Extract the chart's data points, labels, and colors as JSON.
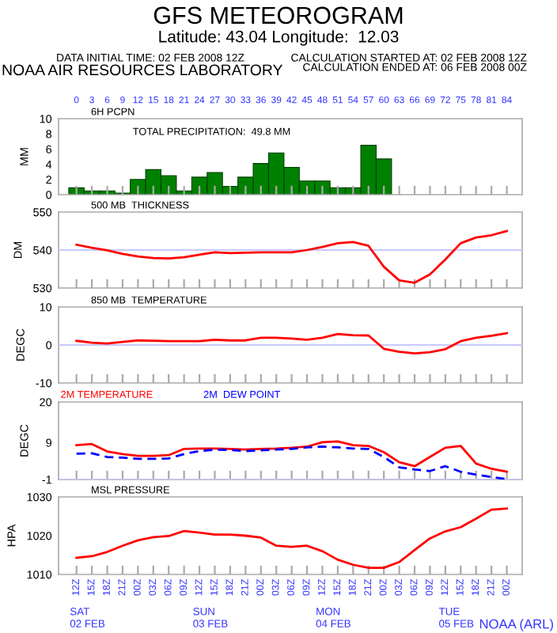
{
  "chart_data": [
    {
      "type": "bar",
      "title": "GFS METEOROGRAM",
      "subtitle": "Latitude: 43.04 Longitude:  12.03",
      "ylabel": "MM",
      "annotations": [
        "DATA INITIAL TIME: 02 FEB 2008 12Z",
        "CALCULATION STARTED AT: 02 FEB 2008 12Z",
        "CALCULATION ENDED AT: 06 FEB 2008 00Z",
        "NOAA AIR RESOURCES LABORATORY",
        "6H PCPN",
        "TOTAL PRECIPITATION:  49.8 MM"
      ],
      "x": [
        "2008-02-02T12:00",
        "2008-02-02T15:00",
        "2008-02-02T18:00",
        "2008-02-02T21:00",
        "2008-02-03T00:00",
        "2008-02-03T03:00",
        "2008-02-03T06:00",
        "2008-02-03T09:00",
        "2008-02-03T12:00",
        "2008-02-03T15:00",
        "2008-02-03T18:00",
        "2008-02-03T21:00",
        "2008-02-04T00:00",
        "2008-02-04T03:00",
        "2008-02-04T06:00",
        "2008-02-04T09:00",
        "2008-02-04T12:00",
        "2008-02-04T15:00",
        "2008-02-04T18:00",
        "2008-02-04T21:00",
        "2008-02-05T00:00"
      ],
      "series": [
        {
          "color": "#008000",
          "values": [
            0.9,
            0.5,
            0.5,
            0.2,
            2.0,
            3.3,
            2.5,
            0.5,
            2.3,
            2.9,
            1.1,
            2.3,
            4.1,
            5.5,
            3.6,
            1.8,
            1.8,
            0.9,
            0.9,
            6.5,
            4.7
          ]
        }
      ],
      "xlim": [
        "2008-02-02T08:30",
        "2008-02-06T03:00"
      ],
      "ylim": [
        0,
        10
      ],
      "yticks": [
        0,
        2,
        4,
        6,
        8,
        10
      ],
      "x2lim": [
        -3.5,
        87
      ],
      "x2ticks": [
        0,
        3,
        6,
        9,
        12,
        15,
        18,
        21,
        24,
        27,
        30,
        33,
        36,
        39,
        42,
        45,
        48,
        51,
        54,
        57,
        60,
        63,
        66,
        69,
        72,
        75,
        78,
        81,
        84
      ],
      "tick_labels": "y",
      "grid": false
    },
    {
      "type": "line",
      "title": "500 MB  THICKNESS",
      "ylabel": "DM",
      "x": [
        "2008-02-02T12:00",
        "2008-02-02T15:00",
        "2008-02-02T18:00",
        "2008-02-02T21:00",
        "2008-02-03T00:00",
        "2008-02-03T03:00",
        "2008-02-03T06:00",
        "2008-02-03T09:00",
        "2008-02-03T12:00",
        "2008-02-03T15:00",
        "2008-02-03T18:00",
        "2008-02-03T21:00",
        "2008-02-04T00:00",
        "2008-02-04T03:00",
        "2008-02-04T06:00",
        "2008-02-04T09:00",
        "2008-02-04T12:00",
        "2008-02-04T15:00",
        "2008-02-04T18:00",
        "2008-02-04T21:00",
        "2008-02-05T00:00",
        "2008-02-05T03:00",
        "2008-02-05T06:00",
        "2008-02-05T09:00",
        "2008-02-05T12:00",
        "2008-02-05T15:00",
        "2008-02-05T18:00",
        "2008-02-05T21:00",
        "2008-02-06T00:00"
      ],
      "series": [
        {
          "color": "#ff0000",
          "values": [
            541.4,
            540.6,
            539.9,
            539.0,
            538.3,
            537.9,
            537.8,
            538.1,
            538.8,
            539.4,
            539.2,
            539.3,
            539.4,
            539.4,
            539.4,
            540.0,
            540.8,
            541.8,
            542.1,
            541.1,
            535.6,
            532.0,
            531.4,
            533.6,
            537.5,
            541.8,
            543.3,
            543.9,
            545.0
          ]
        }
      ],
      "xlim": [
        "2008-02-02T08:30",
        "2008-02-06T03:00"
      ],
      "ylim": [
        530,
        550
      ],
      "yticks": [
        530,
        540,
        550
      ],
      "ref_lines": [
        {
          "axis": "y",
          "value": 540,
          "color": "#c8c8ff"
        }
      ],
      "tick_labels": "y",
      "grid": false
    },
    {
      "type": "line",
      "title": "850 MB  TEMPERATURE",
      "ylabel": "DEGC",
      "x": [
        "2008-02-02T12:00",
        "2008-02-02T15:00",
        "2008-02-02T18:00",
        "2008-02-02T21:00",
        "2008-02-03T00:00",
        "2008-02-03T03:00",
        "2008-02-03T06:00",
        "2008-02-03T09:00",
        "2008-02-03T12:00",
        "2008-02-03T15:00",
        "2008-02-03T18:00",
        "2008-02-03T21:00",
        "2008-02-04T00:00",
        "2008-02-04T03:00",
        "2008-02-04T06:00",
        "2008-02-04T09:00",
        "2008-02-04T12:00",
        "2008-02-04T15:00",
        "2008-02-04T18:00",
        "2008-02-04T21:00",
        "2008-02-05T00:00",
        "2008-02-05T03:00",
        "2008-02-05T06:00",
        "2008-02-05T09:00",
        "2008-02-05T12:00",
        "2008-02-05T15:00",
        "2008-02-05T18:00",
        "2008-02-05T21:00",
        "2008-02-06T00:00"
      ],
      "series": [
        {
          "color": "#ff0000",
          "values": [
            1.1,
            0.6,
            0.4,
            0.8,
            1.2,
            1.1,
            1.0,
            1.0,
            1.0,
            1.4,
            1.2,
            1.2,
            1.9,
            1.9,
            1.7,
            1.4,
            1.9,
            2.9,
            2.6,
            2.5,
            -1.0,
            -1.8,
            -2.2,
            -1.9,
            -1.1,
            1.0,
            1.9,
            2.4,
            3.1
          ]
        }
      ],
      "xlim": [
        "2008-02-02T08:30",
        "2008-02-06T03:00"
      ],
      "ylim": [
        -10,
        10
      ],
      "yticks": [
        -10,
        0,
        10
      ],
      "ref_lines": [
        {
          "axis": "y",
          "value": 0,
          "color": "#c8c8ff"
        }
      ],
      "tick_labels": "y",
      "grid": false
    },
    {
      "type": "line",
      "ylabel": "DEGC",
      "legend": "top left",
      "x": [
        "2008-02-02T12:00",
        "2008-02-02T15:00",
        "2008-02-02T18:00",
        "2008-02-02T21:00",
        "2008-02-03T00:00",
        "2008-02-03T03:00",
        "2008-02-03T06:00",
        "2008-02-03T09:00",
        "2008-02-03T12:00",
        "2008-02-03T15:00",
        "2008-02-03T18:00",
        "2008-02-03T21:00",
        "2008-02-04T00:00",
        "2008-02-04T03:00",
        "2008-02-04T06:00",
        "2008-02-04T09:00",
        "2008-02-04T12:00",
        "2008-02-04T15:00",
        "2008-02-04T18:00",
        "2008-02-04T21:00",
        "2008-02-05T00:00",
        "2008-02-05T03:00",
        "2008-02-05T06:00",
        "2008-02-05T09:00",
        "2008-02-05T12:00",
        "2008-02-05T15:00",
        "2008-02-05T18:00",
        "2008-02-05T21:00",
        "2008-02-06T00:00"
      ],
      "series": [
        {
          "name": "2M TEMPERATURE",
          "color": "#ff0000",
          "line_style": "solid",
          "values": [
            8.3,
            8.6,
            6.6,
            5.9,
            5.4,
            5.4,
            5.6,
            7.3,
            7.4,
            7.4,
            7.3,
            7.1,
            7.3,
            7.4,
            7.6,
            7.9,
            9.1,
            9.3,
            8.3,
            8.1,
            6.4,
            3.7,
            2.6,
            5.1,
            7.6,
            8.1,
            3.3,
            1.9,
            1.1
          ]
        },
        {
          "name": "2M  DEW POINT",
          "color": "#0000ff",
          "line_style": "dashed",
          "values": [
            6.0,
            6.1,
            5.1,
            4.9,
            4.6,
            4.6,
            4.7,
            5.9,
            6.7,
            7.1,
            7.0,
            6.7,
            6.9,
            7.1,
            7.3,
            7.7,
            7.9,
            7.7,
            7.4,
            7.3,
            5.1,
            2.3,
            1.7,
            1.3,
            2.6,
            1.1,
            0.3,
            -0.3,
            -0.9
          ]
        }
      ],
      "xlim": [
        "2008-02-02T08:30",
        "2008-02-06T03:00"
      ],
      "ylim": [
        -1,
        20
      ],
      "yticks": [
        -1,
        9,
        20
      ],
      "ref_lines": [
        {
          "axis": "y",
          "value": -1,
          "color": "#c8c8ff"
        }
      ],
      "tick_labels": "y",
      "grid": false
    },
    {
      "type": "line",
      "title": "MSL PRESSURE",
      "ylabel": "HPA",
      "annotations": [
        "SAT\n02 FEB",
        "SUN\n03 FEB",
        "MON\n04 FEB",
        "TUE\n05 FEB",
        "NOAA (ARL)"
      ],
      "x": [
        "2008-02-02T12:00",
        "2008-02-02T15:00",
        "2008-02-02T18:00",
        "2008-02-02T21:00",
        "2008-02-03T00:00",
        "2008-02-03T03:00",
        "2008-02-03T06:00",
        "2008-02-03T09:00",
        "2008-02-03T12:00",
        "2008-02-03T15:00",
        "2008-02-03T18:00",
        "2008-02-03T21:00",
        "2008-02-04T00:00",
        "2008-02-04T03:00",
        "2008-02-04T06:00",
        "2008-02-04T09:00",
        "2008-02-04T12:00",
        "2008-02-04T15:00",
        "2008-02-04T18:00",
        "2008-02-04T21:00",
        "2008-02-05T00:00",
        "2008-02-05T03:00",
        "2008-02-05T06:00",
        "2008-02-05T09:00",
        "2008-02-05T12:00",
        "2008-02-05T15:00",
        "2008-02-05T18:00",
        "2008-02-05T21:00",
        "2008-02-06T00:00"
      ],
      "series": [
        {
          "color": "#ff0000",
          "values": [
            1014.3,
            1014.7,
            1015.8,
            1017.4,
            1018.8,
            1019.6,
            1019.9,
            1021.2,
            1020.8,
            1020.3,
            1020.3,
            1020.0,
            1019.5,
            1017.4,
            1017.1,
            1017.4,
            1016.0,
            1013.8,
            1012.5,
            1011.7,
            1011.7,
            1013.2,
            1016.3,
            1019.3,
            1021.1,
            1022.2,
            1024.4,
            1026.7,
            1027.0
          ]
        }
      ],
      "xlim": [
        "2008-02-02T08:30",
        "2008-02-06T03:00"
      ],
      "ylim": [
        1010,
        1030
      ],
      "yticks": [
        1010,
        1020,
        1030
      ],
      "xticks": [
        {
          "value": "2008-02-02T12:00",
          "label": "12Z"
        },
        {
          "value": "2008-02-02T15:00",
          "label": "15Z"
        },
        {
          "value": "2008-02-02T18:00",
          "label": "18Z"
        },
        {
          "value": "2008-02-02T21:00",
          "label": "21Z"
        },
        {
          "value": "2008-02-03T00:00",
          "label": "00Z"
        },
        {
          "value": "2008-02-03T03:00",
          "label": "03Z"
        },
        {
          "value": "2008-02-03T06:00",
          "label": "06Z"
        },
        {
          "value": "2008-02-03T09:00",
          "label": "09Z"
        },
        {
          "value": "2008-02-03T12:00",
          "label": "12Z"
        },
        {
          "value": "2008-02-03T15:00",
          "label": "15Z"
        },
        {
          "value": "2008-02-03T18:00",
          "label": "18Z"
        },
        {
          "value": "2008-02-03T21:00",
          "label": "21Z"
        },
        {
          "value": "2008-02-04T00:00",
          "label": "00Z"
        },
        {
          "value": "2008-02-04T03:00",
          "label": "03Z"
        },
        {
          "value": "2008-02-04T06:00",
          "label": "06Z"
        },
        {
          "value": "2008-02-04T09:00",
          "label": "09Z"
        },
        {
          "value": "2008-02-04T12:00",
          "label": "12Z"
        },
        {
          "value": "2008-02-04T15:00",
          "label": "15Z"
        },
        {
          "value": "2008-02-04T18:00",
          "label": "18Z"
        },
        {
          "value": "2008-02-04T21:00",
          "label": "21Z"
        },
        {
          "value": "2008-02-05T00:00",
          "label": "00Z"
        },
        {
          "value": "2008-02-05T03:00",
          "label": "03Z"
        },
        {
          "value": "2008-02-05T06:00",
          "label": "06Z"
        },
        {
          "value": "2008-02-05T09:00",
          "label": "09Z"
        },
        {
          "value": "2008-02-05T12:00",
          "label": "12Z"
        },
        {
          "value": "2008-02-05T15:00",
          "label": "15Z"
        },
        {
          "value": "2008-02-05T18:00",
          "label": "18Z"
        },
        {
          "value": "2008-02-05T21:00",
          "label": "21Z"
        },
        {
          "value": "2008-02-06T00:00",
          "label": "00Z"
        }
      ],
      "grid": false
    }
  ]
}
